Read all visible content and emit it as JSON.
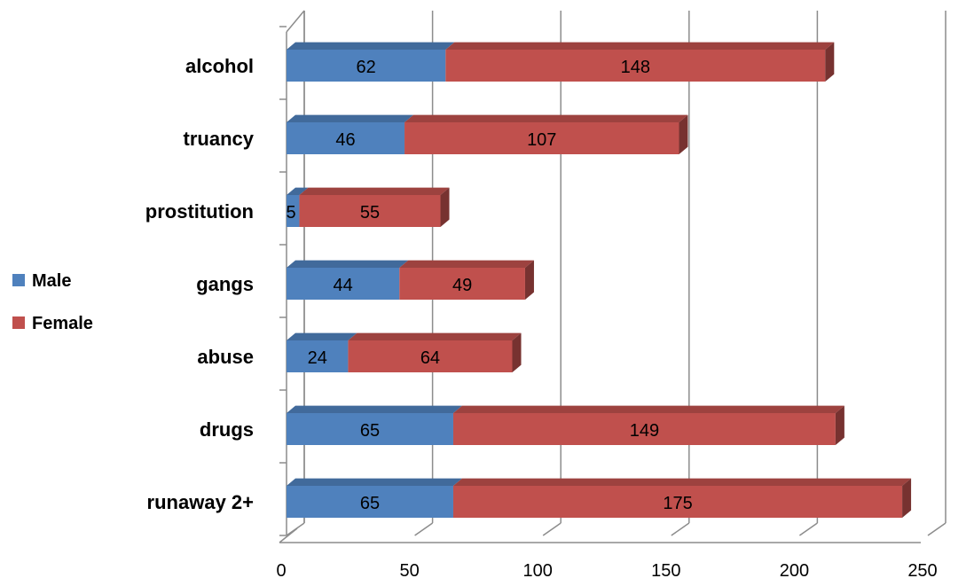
{
  "chart_data": {
    "type": "bar",
    "orientation": "horizontal",
    "stacked": true,
    "style_3d": true,
    "categories": [
      "alcohol",
      "truancy",
      "prostitution",
      "gangs",
      "abuse",
      "drugs",
      "runaway 2+"
    ],
    "series": [
      {
        "name": "Male",
        "color": "#4F81BD",
        "values": [
          62,
          46,
          5,
          44,
          24,
          65,
          65
        ]
      },
      {
        "name": "Female",
        "color": "#C0504D",
        "values": [
          148,
          107,
          55,
          49,
          64,
          149,
          175
        ]
      }
    ],
    "xlim": [
      0,
      250
    ],
    "x_ticks": [
      "0",
      "50",
      "100",
      "150",
      "200",
      "250"
    ],
    "grid": true,
    "legend_position": "left",
    "data_labels": true
  }
}
